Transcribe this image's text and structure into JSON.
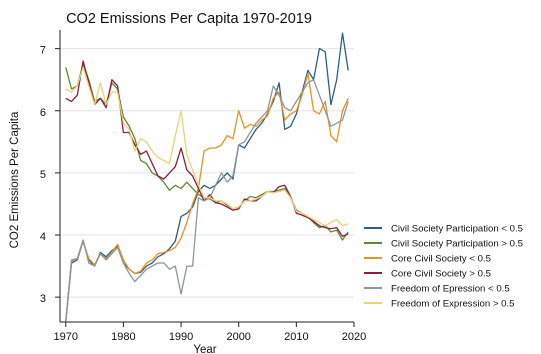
{
  "chart_data": {
    "type": "line",
    "title": "CO2 Emissions Per Capita 1970-2019",
    "xlabel": "Year",
    "ylabel": "CO2 Emissions Per Capita",
    "xlim": [
      1969,
      2020
    ],
    "ylim": [
      2.6,
      7.3
    ],
    "xticks": [
      1970,
      1980,
      1990,
      2000,
      2010,
      2020
    ],
    "yticks": [
      3,
      4,
      5,
      6,
      7
    ],
    "grid": "horizontal",
    "legend_position": "right",
    "x": [
      1970,
      1971,
      1972,
      1973,
      1974,
      1975,
      1976,
      1977,
      1978,
      1979,
      1980,
      1981,
      1982,
      1983,
      1984,
      1985,
      1986,
      1987,
      1988,
      1989,
      1990,
      1991,
      1992,
      1993,
      1994,
      1995,
      1996,
      1997,
      1998,
      1999,
      2000,
      2001,
      2002,
      2003,
      2004,
      2005,
      2006,
      2007,
      2008,
      2009,
      2010,
      2011,
      2012,
      2013,
      2014,
      2015,
      2016,
      2017,
      2018,
      2019
    ],
    "series": [
      {
        "name": "Civil Society Participation < 0.5",
        "color": "#2d5f86",
        "values": [
          2.6,
          3.55,
          3.6,
          3.9,
          3.6,
          3.5,
          3.72,
          3.65,
          3.75,
          3.82,
          3.55,
          3.45,
          3.38,
          3.4,
          3.5,
          3.55,
          3.65,
          3.7,
          3.78,
          3.9,
          4.3,
          4.35,
          4.45,
          4.7,
          4.8,
          4.75,
          4.8,
          4.9,
          5.0,
          4.9,
          5.45,
          5.4,
          5.55,
          5.7,
          5.8,
          5.95,
          6.15,
          6.45,
          5.7,
          5.75,
          5.95,
          6.3,
          6.65,
          6.5,
          7.0,
          6.95,
          6.1,
          6.5,
          7.25,
          6.65
        ]
      },
      {
        "name": "Civil Society Participation > 0.5",
        "color": "#5e8a36",
        "values": [
          6.7,
          6.35,
          6.4,
          6.75,
          6.5,
          6.15,
          6.2,
          6.1,
          6.45,
          6.35,
          5.9,
          5.75,
          5.55,
          5.2,
          5.15,
          5.0,
          4.95,
          4.85,
          4.72,
          4.8,
          4.75,
          4.85,
          4.75,
          4.65,
          4.6,
          4.58,
          4.52,
          4.55,
          4.48,
          4.42,
          4.45,
          4.55,
          4.62,
          4.6,
          4.65,
          4.7,
          4.7,
          4.72,
          4.75,
          4.6,
          4.4,
          4.35,
          4.3,
          4.2,
          4.12,
          4.15,
          4.05,
          4.08,
          3.92,
          4.05
        ]
      },
      {
        "name": "Core Civil Society < 0.5",
        "color": "#e8921c",
        "values": [
          2.62,
          3.58,
          3.62,
          3.9,
          3.62,
          3.52,
          3.7,
          3.62,
          3.72,
          3.85,
          3.6,
          3.45,
          3.38,
          3.42,
          3.55,
          3.6,
          3.7,
          3.72,
          3.75,
          3.8,
          3.95,
          4.2,
          4.5,
          4.75,
          5.35,
          5.4,
          5.4,
          5.45,
          5.6,
          5.55,
          6.0,
          5.72,
          5.78,
          5.75,
          5.85,
          5.92,
          6.2,
          6.3,
          5.85,
          5.95,
          6.0,
          6.25,
          6.6,
          6.0,
          5.95,
          6.15,
          5.6,
          5.5,
          6.0,
          6.2
        ]
      },
      {
        "name": "Core Civil Society > 0.5",
        "color": "#8b1e3f",
        "values": [
          6.2,
          6.15,
          6.25,
          6.8,
          6.45,
          6.1,
          6.2,
          6.05,
          6.5,
          6.4,
          5.65,
          5.65,
          5.45,
          5.3,
          5.35,
          5.15,
          4.95,
          4.9,
          5.0,
          5.1,
          5.4,
          5.05,
          4.95,
          4.75,
          4.55,
          4.65,
          4.52,
          4.5,
          4.45,
          4.4,
          4.42,
          4.58,
          4.55,
          4.55,
          4.62,
          4.7,
          4.68,
          4.78,
          4.8,
          4.62,
          4.35,
          4.32,
          4.28,
          4.22,
          4.15,
          4.12,
          4.1,
          4.12,
          3.98,
          4.02
        ]
      },
      {
        "name": "Freedom of Epression < 0.5",
        "color": "#8c96a0",
        "values": [
          2.62,
          3.6,
          3.62,
          3.92,
          3.55,
          3.5,
          3.7,
          3.6,
          3.7,
          3.8,
          3.55,
          3.38,
          3.25,
          3.35,
          3.45,
          3.5,
          3.55,
          3.55,
          3.45,
          3.5,
          3.05,
          3.5,
          3.5,
          4.6,
          4.55,
          4.6,
          4.8,
          5.0,
          4.85,
          4.95,
          5.45,
          5.5,
          5.65,
          5.8,
          5.9,
          6.0,
          6.4,
          6.25,
          6.05,
          6.0,
          6.15,
          6.3,
          6.45,
          6.5,
          6.25,
          6.0,
          5.75,
          5.8,
          5.85,
          6.15
        ]
      },
      {
        "name": "Freedom of Expression > 0.5",
        "color": "#ead27a",
        "values": [
          6.35,
          6.3,
          6.4,
          6.7,
          6.4,
          6.1,
          6.45,
          6.1,
          6.3,
          6.3,
          5.8,
          5.7,
          5.35,
          5.55,
          5.5,
          5.35,
          5.25,
          5.2,
          5.15,
          5.6,
          6.0,
          5.3,
          5.05,
          4.8,
          4.6,
          4.6,
          4.55,
          4.55,
          4.5,
          4.42,
          4.45,
          4.55,
          4.55,
          4.58,
          4.62,
          4.7,
          4.68,
          4.7,
          4.72,
          4.6,
          4.38,
          4.35,
          4.3,
          4.25,
          4.2,
          4.15,
          4.2,
          4.25,
          4.15,
          4.18
        ]
      }
    ]
  }
}
